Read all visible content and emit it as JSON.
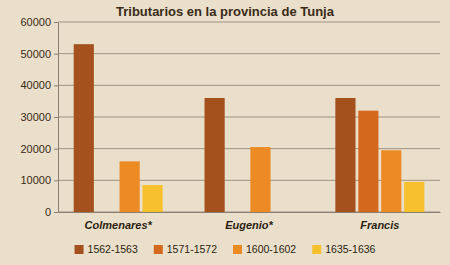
{
  "chart_data": {
    "type": "bar",
    "title": "Tributarios en la provincia de Tunja",
    "categories": [
      "Colmenares*",
      "Eugenio*",
      "Francis"
    ],
    "series": [
      {
        "name": "1562-1563",
        "color": "#a4511d",
        "values": [
          53000,
          36000,
          36000
        ]
      },
      {
        "name": "1571-1572",
        "color": "#d4691e",
        "values": [
          null,
          null,
          32000
        ]
      },
      {
        "name": "1600-1602",
        "color": "#ec8a24",
        "values": [
          16000,
          20500,
          19500
        ]
      },
      {
        "name": "1635-1636",
        "color": "#f6c12c",
        "values": [
          8500,
          null,
          9500
        ]
      }
    ],
    "ylim": [
      0,
      60000
    ],
    "yticks": [
      0,
      10000,
      20000,
      30000,
      40000,
      50000,
      60000
    ],
    "grid": true,
    "legend": "bottom"
  }
}
